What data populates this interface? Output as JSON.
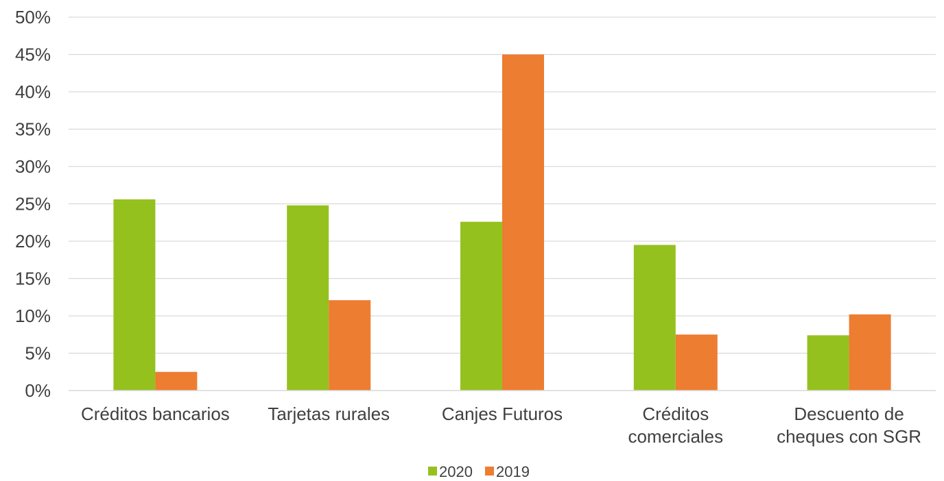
{
  "chart_data": {
    "type": "bar",
    "categories": [
      [
        "Créditos bancarios"
      ],
      [
        "Tarjetas rurales"
      ],
      [
        "Canjes Futuros"
      ],
      [
        "Créditos",
        "comerciales"
      ],
      [
        "Descuento de",
        "cheques con SGR"
      ]
    ],
    "series": [
      {
        "name": "2020",
        "color": "#95C11F",
        "values": [
          25.6,
          24.8,
          22.6,
          19.5,
          7.4
        ]
      },
      {
        "name": "2019",
        "color": "#ED7D31",
        "values": [
          2.5,
          12.1,
          45.0,
          7.5,
          10.2
        ]
      }
    ],
    "yticks": [
      "0%",
      "5%",
      "10%",
      "15%",
      "20%",
      "25%",
      "30%",
      "35%",
      "40%",
      "45%",
      "50%"
    ],
    "ylim": [
      0,
      50
    ],
    "grid": true,
    "legend": "bottom-center",
    "title": "",
    "xlabel": "",
    "ylabel": ""
  }
}
